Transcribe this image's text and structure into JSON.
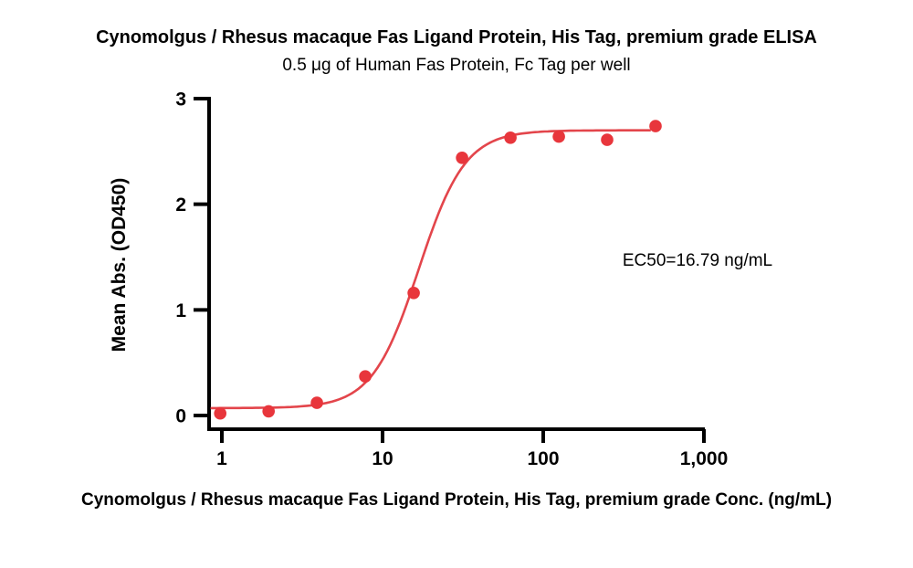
{
  "header": {
    "title": "Cynomolgus / Rhesus macaque Fas Ligand Protein, His Tag, premium grade ELISA",
    "subtitle": "0.5 μg of Human Fas Protein, Fc Tag per well"
  },
  "chart_data": {
    "type": "scatter",
    "curve_model": "4-parameter logistic dose-response fit",
    "x_scale": "log10",
    "x": [
      0.977,
      1.953,
      3.906,
      7.813,
      15.625,
      31.25,
      62.5,
      125,
      250,
      500
    ],
    "y": [
      0.02,
      0.04,
      0.12,
      0.37,
      1.16,
      2.44,
      2.63,
      2.64,
      2.61,
      2.74
    ],
    "fit": {
      "bottom": 0.07,
      "top": 2.7,
      "ec50": 16.79,
      "hill": 3.0
    },
    "annotation": "EC50=16.79 ng/mL",
    "xlabel": "Cynomolgus / Rhesus macaque Fas Ligand Protein, His Tag, premium grade Conc. (ng/mL)",
    "ylabel": "Mean Abs. (OD450)",
    "xlim": [
      1,
      1000
    ],
    "ylim": [
      0,
      3
    ],
    "x_ticks": [
      1,
      10,
      100,
      1000
    ],
    "x_tick_labels": [
      "1",
      "10",
      "100",
      "1,000"
    ],
    "y_ticks": [
      0,
      1,
      2,
      3
    ],
    "y_tick_labels": [
      "0",
      "1",
      "2",
      "3"
    ],
    "grid": "off",
    "legend": "none",
    "point_color": "#e8363c",
    "curve_color": "#e3454b",
    "axis_color": "#000000"
  }
}
